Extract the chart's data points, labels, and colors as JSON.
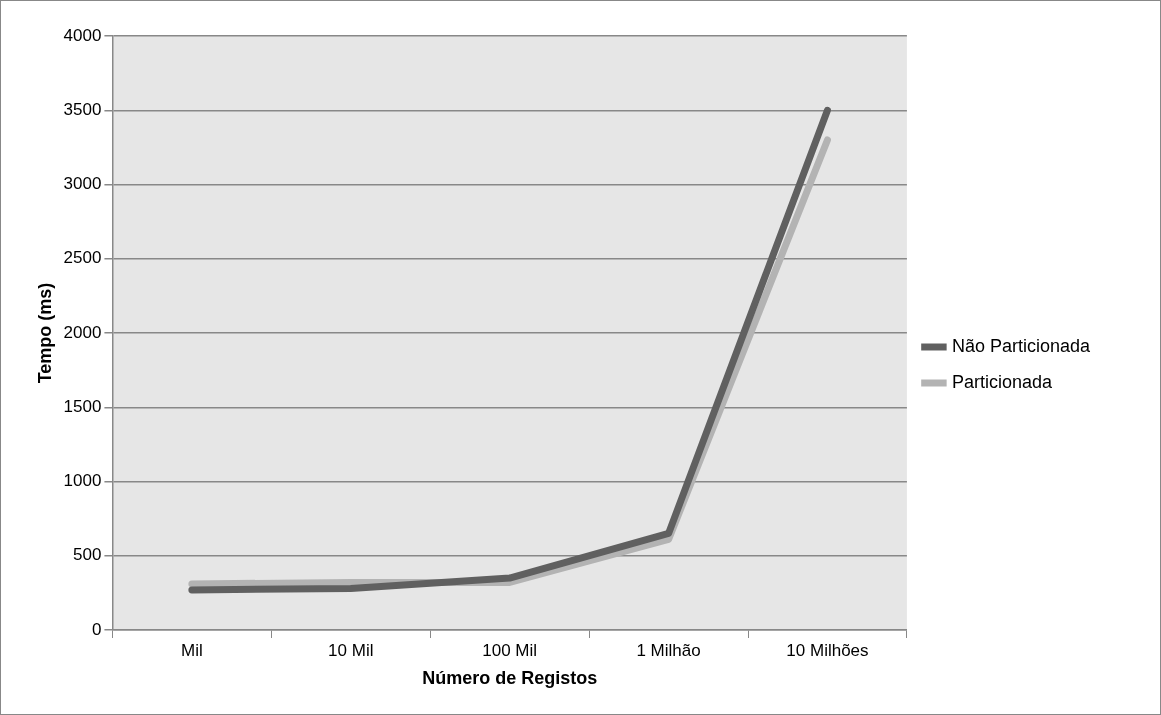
{
  "chart_data": {
    "type": "line",
    "xlabel": "Número de Registos",
    "ylabel": "Tempo (ms)",
    "categories": [
      "Mil",
      "10 Mil",
      "100 Mil",
      "1 Milhão",
      "10 Milhões"
    ],
    "series": [
      {
        "name": "Não Particionada",
        "color": "#606060",
        "values": [
          270,
          280,
          350,
          650,
          3500
        ]
      },
      {
        "name": "Particionada",
        "color": "#b3b3b3",
        "values": [
          310,
          320,
          320,
          610,
          3300
        ]
      }
    ],
    "ylim": [
      0,
      4000
    ],
    "yticks": [
      0,
      500,
      1000,
      1500,
      2000,
      2500,
      3000,
      3500,
      4000
    ],
    "grid": "y",
    "legend": "right",
    "marker": "none"
  }
}
